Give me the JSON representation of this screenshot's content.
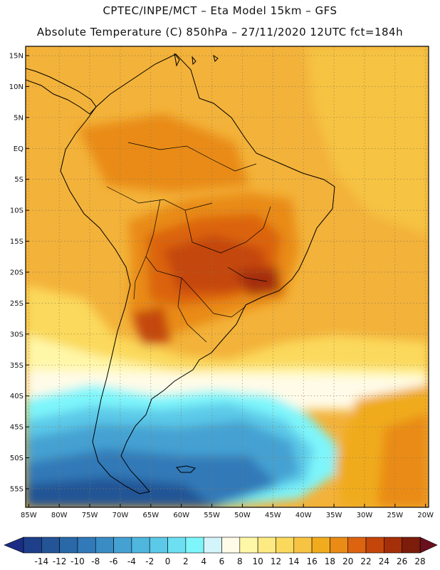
{
  "header": {
    "line1": "CPTEC/INPE/MCT –  Eta Model 15km – GFS",
    "line2": "Absolute Temperature (C) 850hPa – 27/11/2020 12UTC fct=184h"
  },
  "map": {
    "lat_labels": [
      "15N",
      "10N",
      "5N",
      "EQ",
      "5S",
      "10S",
      "15S",
      "20S",
      "25S",
      "30S",
      "35S",
      "40S",
      "45S",
      "50S",
      "55S"
    ],
    "lat_values": [
      15,
      10,
      5,
      0,
      -5,
      -10,
      -15,
      -20,
      -25,
      -30,
      -35,
      -40,
      -45,
      -50,
      -55
    ],
    "lon_labels": [
      "85W",
      "80W",
      "75W",
      "70W",
      "65W",
      "60W",
      "55W",
      "50W",
      "45W",
      "40W",
      "35W",
      "30W",
      "25W",
      "20W"
    ],
    "lon_values": [
      -85,
      -80,
      -75,
      -70,
      -65,
      -60,
      -55,
      -50,
      -45,
      -40,
      -35,
      -30,
      -25,
      -20
    ],
    "lat_range": [
      -58,
      16.5
    ],
    "lon_range": [
      -85.5,
      -19.5
    ]
  },
  "colorbar": {
    "labels": [
      "-14",
      "-12",
      "-10",
      "-8",
      "-6",
      "-4",
      "-2",
      "0",
      "2",
      "4",
      "6",
      "8",
      "10",
      "12",
      "14",
      "16",
      "18",
      "20",
      "22",
      "24",
      "26",
      "28"
    ],
    "colors": [
      "#1e3f8a",
      "#235496",
      "#2a68a8",
      "#3179b8",
      "#3a8cc4",
      "#44a1d2",
      "#4fb6de",
      "#5cc9e8",
      "#6ce0f2",
      "#7ef5fb",
      "#d4f4fb",
      "#fffbe8",
      "#fff7a8",
      "#fdea83",
      "#fbd95c",
      "#f6c343",
      "#f0ab1e",
      "#e98b14",
      "#dc6410",
      "#c4460b",
      "#a52f08",
      "#7b1d0a"
    ],
    "left_arrow_color": "#1c2c86",
    "right_arrow_color": "#6a0f1e"
  }
}
